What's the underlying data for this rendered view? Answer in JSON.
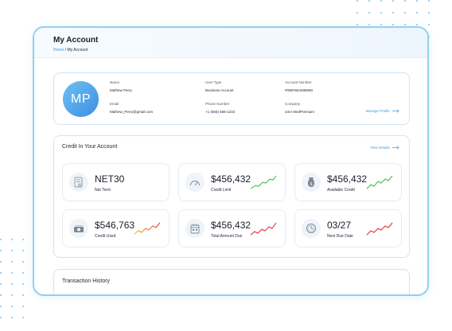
{
  "header": {
    "title": "My Account",
    "breadcrumb_home": "Home",
    "breadcrumb_sep": "/",
    "breadcrumb_current": "My Account"
  },
  "profile": {
    "initials": "MP",
    "fields": [
      {
        "label": "Name",
        "value": "Mathew Perry"
      },
      {
        "label": "User Type",
        "value": "Business Account"
      },
      {
        "label": "Account Number",
        "value": "#0987654498090"
      },
      {
        "label": "Email",
        "value": "Mathew_Perry@gmail.com"
      },
      {
        "label": "Phone Number",
        "value": "+1 (555) 555-1234"
      },
      {
        "label": "Company",
        "value": "USA MedPremium"
      }
    ],
    "manage_label": "Manage Profile"
  },
  "credit": {
    "title": "Credit In Your Account",
    "view_details": "View Details",
    "tiles": [
      {
        "value": "NET30",
        "label": "Net Term",
        "icon": "document-icon",
        "trend": null
      },
      {
        "value": "$456,432",
        "label": "Credit Limit",
        "icon": "speedometer-icon",
        "trend": "up"
      },
      {
        "value": "$456,432",
        "label": "Available Credit",
        "icon": "money-bag-icon",
        "trend": "up"
      },
      {
        "value": "$546,763",
        "label": "Credit Used",
        "icon": "cash-icon",
        "trend": "mixed"
      },
      {
        "value": "$456,432",
        "label": "Total Amount Due",
        "icon": "calendar-icon",
        "trend": "down"
      },
      {
        "value": "03/27",
        "label": "Next Due Date",
        "icon": "clock-icon",
        "trend": "down"
      }
    ]
  },
  "history": {
    "title": "Transaction History"
  },
  "colors": {
    "accent": "#3d9be0",
    "trend_up": "#3fbf4a",
    "trend_down": "#e3333f",
    "trend_mixed_start": "#f4b400",
    "trend_mixed_end": "#e3333f"
  }
}
